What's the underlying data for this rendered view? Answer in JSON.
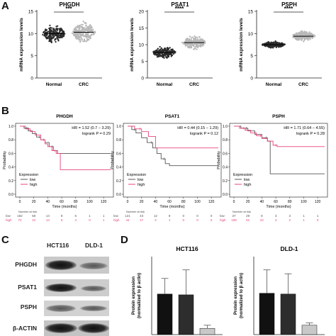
{
  "panels": {
    "a": "A",
    "b": "B",
    "c": "C",
    "d": "D"
  },
  "colors": {
    "normal_dots": "#2a2a2a",
    "crc_dots": "#b8b8b8",
    "km_low": "#555555",
    "km_high": "#e8457a",
    "bar_hct_1": "#111111",
    "bar_hct_2": "#2d2d2d",
    "bar_hct_3": "#c8c8c8",
    "bar_dld_1": "#111111",
    "bar_dld_2": "#2d2d2d",
    "bar_dld_3": "#c8c8c8"
  },
  "chart_data": [
    {
      "type": "scatter",
      "title": "PHGDH",
      "ylabel": "mRNA expression levels",
      "categories": [
        "Normal",
        "CRC"
      ],
      "ylim": [
        0,
        15
      ],
      "yticks": [
        0,
        5,
        10,
        15
      ],
      "significance": "***",
      "series": [
        {
          "name": "Normal",
          "center": 10,
          "spread": 2.3,
          "n": 200
        },
        {
          "name": "CRC",
          "center": 10.3,
          "spread": 2.6,
          "n": 240
        }
      ]
    },
    {
      "type": "scatter",
      "title": "PSAT1",
      "ylabel": "mRNA expression levels",
      "categories": [
        "Normal",
        "CRC"
      ],
      "ylim": [
        0,
        20
      ],
      "yticks": [
        0,
        5,
        10,
        15,
        20
      ],
      "significance": "****",
      "series": [
        {
          "name": "Normal",
          "center": 7.6,
          "spread": 2.2,
          "n": 200
        },
        {
          "name": "CRC",
          "center": 10.6,
          "spread": 2.3,
          "n": 240
        }
      ]
    },
    {
      "type": "scatter",
      "title": "PSPH",
      "ylabel": "mRNA expression levels",
      "categories": [
        "Normal",
        "CRC"
      ],
      "ylim": [
        0,
        15
      ],
      "yticks": [
        0,
        5,
        10,
        15
      ],
      "significance": "****",
      "series": [
        {
          "name": "Normal",
          "center": 7.5,
          "spread": 0.9,
          "n": 200
        },
        {
          "name": "CRC",
          "center": 9.4,
          "spread": 1.4,
          "n": 240
        }
      ]
    },
    {
      "type": "line",
      "title": "PHGDH",
      "xlabel": "Time (months)",
      "ylabel": "Probability",
      "xlim": [
        0,
        130
      ],
      "xticks": [
        0,
        20,
        40,
        60,
        80,
        100,
        120
      ],
      "ylim": [
        0,
        1
      ],
      "yticks": [
        0,
        0.2,
        0.4,
        0.6,
        0.8,
        1.0
      ],
      "hr_text": "HR = 1.52 (0.7 − 3.29)",
      "p_text": "logrank P = 0.29",
      "legend_title": "Expression",
      "legend": [
        "low",
        "high"
      ],
      "series": [
        {
          "name": "low",
          "x": [
            0,
            6,
            12,
            18,
            24,
            30,
            36,
            42,
            48,
            54,
            60,
            130
          ],
          "y": [
            1,
            0.97,
            0.93,
            0.89,
            0.84,
            0.8,
            0.76,
            0.7,
            0.64,
            0.6,
            0.6,
            0.6
          ]
        },
        {
          "name": "high",
          "x": [
            0,
            8,
            15,
            22,
            30,
            36,
            40,
            46,
            52,
            58,
            130
          ],
          "y": [
            1,
            0.96,
            0.92,
            0.87,
            0.8,
            0.74,
            0.7,
            0.64,
            0.6,
            0.36,
            0.36
          ]
        }
      ],
      "risk_table": {
        "header": "Number at risk",
        "rows": [
          {
            "label": "low",
            "values": [
              "182",
              "58",
              "14",
              "8",
              "6",
              "1",
              "1"
            ]
          },
          {
            "label": "high",
            "values": [
              "72",
              "12",
              "14",
              "6",
              "4",
              "0",
              "1"
            ]
          }
        ]
      }
    },
    {
      "type": "line",
      "title": "PSAT1",
      "xlabel": "Time (months)",
      "ylabel": "Probability",
      "xlim": [
        0,
        130
      ],
      "xticks": [
        0,
        20,
        40,
        60,
        80,
        100,
        120
      ],
      "ylim": [
        0,
        1
      ],
      "yticks": [
        0,
        0.2,
        0.4,
        0.6,
        0.8,
        1.0
      ],
      "hr_text": "HR = 0.44 (0.15 − 1.29)",
      "p_text": "logrank P = 0.12",
      "legend_title": "Expression",
      "legend": [
        "low",
        "high"
      ],
      "series": [
        {
          "name": "low",
          "x": [
            0,
            6,
            12,
            20,
            28,
            36,
            42,
            48,
            54,
            60,
            130
          ],
          "y": [
            1,
            0.95,
            0.9,
            0.83,
            0.76,
            0.68,
            0.6,
            0.52,
            0.45,
            0.42,
            0.42
          ]
        },
        {
          "name": "high",
          "x": [
            0,
            10,
            20,
            30,
            40,
            130
          ],
          "y": [
            1,
            0.96,
            0.92,
            0.85,
            0.68,
            0.68
          ]
        }
      ],
      "risk_table": {
        "header": "Number at risk",
        "rows": [
          {
            "label": "low",
            "values": [
              "121",
              "43",
              "12",
              "8",
              "0",
              "0",
              "0"
            ]
          },
          {
            "label": "high",
            "values": [
              "44",
              "17",
              "3",
              "1",
              "0",
              "0",
              "0"
            ]
          }
        ]
      }
    },
    {
      "type": "line",
      "title": "PSPH",
      "xlabel": "Time (months)",
      "ylabel": "Probability",
      "xlim": [
        0,
        130
      ],
      "xticks": [
        0,
        20,
        40,
        60,
        80,
        100,
        120
      ],
      "ylim": [
        0,
        1
      ],
      "yticks": [
        0,
        0.2,
        0.4,
        0.6,
        0.8,
        1.0
      ],
      "hr_text": "HR = 1.71 (0.64 − 4.55)",
      "p_text": "logrank P = 0.28",
      "legend_title": "Expression",
      "legend": [
        "low",
        "high"
      ],
      "series": [
        {
          "name": "low",
          "x": [
            0,
            10,
            20,
            30,
            40,
            48,
            52,
            130
          ],
          "y": [
            1,
            0.97,
            0.93,
            0.88,
            0.83,
            0.78,
            0.3,
            0.3
          ]
        },
        {
          "name": "high",
          "x": [
            0,
            8,
            16,
            24,
            32,
            40,
            48,
            56,
            62,
            130
          ],
          "y": [
            1,
            0.97,
            0.94,
            0.9,
            0.86,
            0.82,
            0.78,
            0.72,
            0.7,
            0.7
          ]
        }
      ],
      "risk_table": {
        "header": "Number at risk",
        "rows": [
          {
            "label": "low",
            "values": [
              "37",
              "29",
              "8",
              "3",
              "3",
              "1",
              "1"
            ]
          },
          {
            "label": "high",
            "values": [
              "108",
              "61",
              "22",
              "4",
              "2",
              "1",
              "0"
            ]
          }
        ]
      }
    },
    {
      "type": "bar",
      "title": "HCT116",
      "ylabel": "Protein expression\n(normalized to β actin)",
      "categories": [
        "PHGDH",
        "PSAT1",
        "PSPH"
      ],
      "values": [
        0.052,
        0.051,
        0.008
      ],
      "errors": [
        0.02,
        0.032,
        0.004
      ],
      "ylim": [
        0,
        0.1
      ]
    },
    {
      "type": "bar",
      "title": "DLD-1",
      "ylabel": "Protein expression\n(normalized to β actin)",
      "categories": [
        "PHGDH",
        "PSAT1",
        "PSPH"
      ],
      "values": [
        0.053,
        0.052,
        0.012
      ],
      "errors": [
        0.03,
        0.026,
        0.003
      ],
      "ylim": [
        0,
        0.1
      ]
    }
  ],
  "blot": {
    "headers": [
      "HCT116",
      "DLD-1"
    ],
    "labels": [
      "PHGDH",
      "PSAT1",
      "PSPH",
      "β-ACTIN"
    ]
  }
}
